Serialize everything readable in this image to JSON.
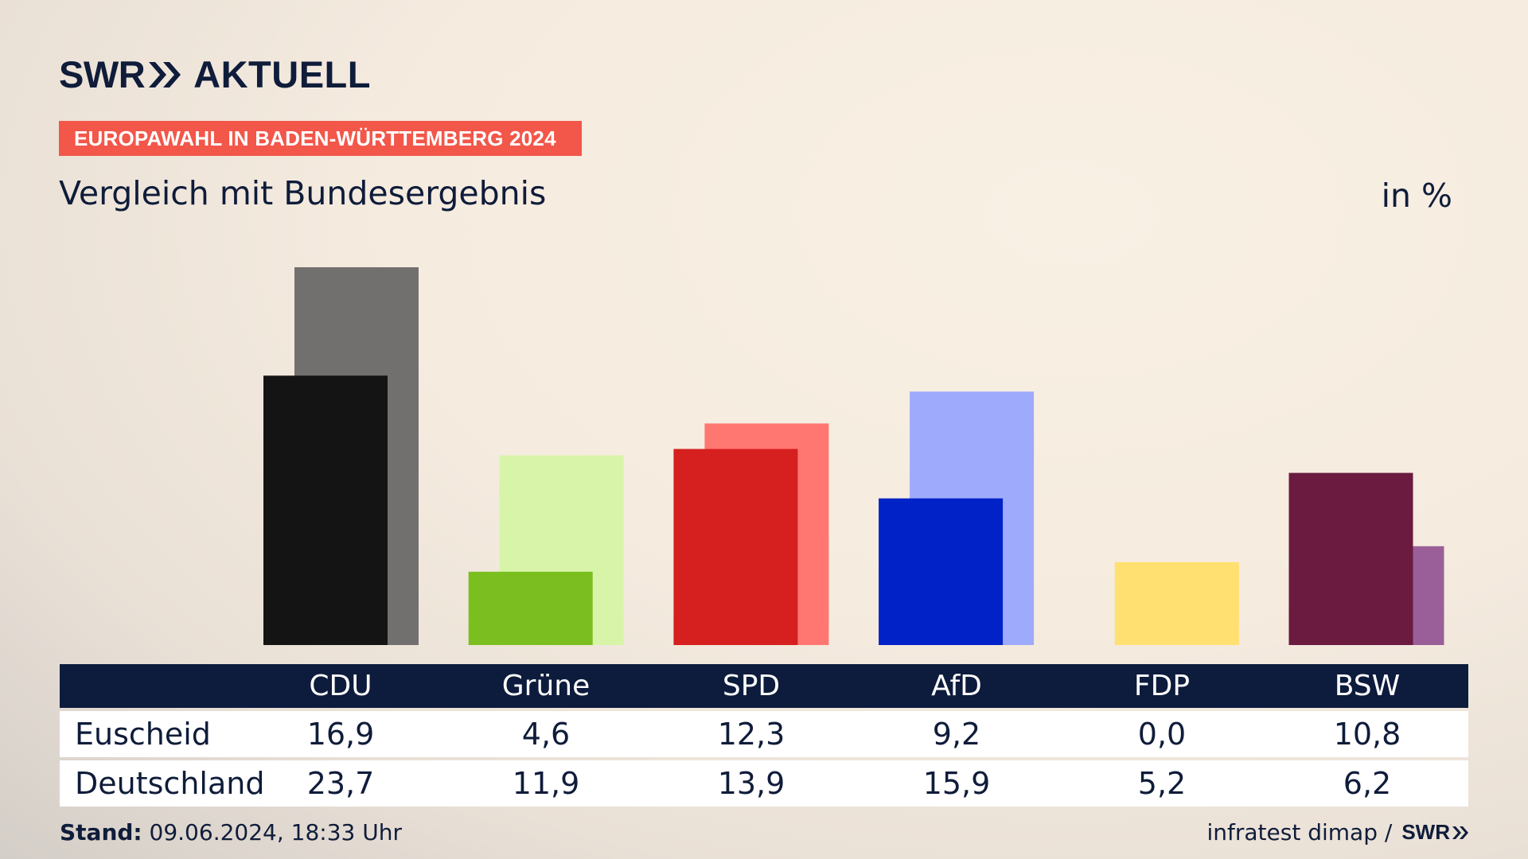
{
  "header": {
    "logo_swr": "SWR",
    "logo_aktuell": "AKTUELL",
    "badge": "EUROPAWAHL IN BADEN-WÜRTTEMBERG 2024",
    "subtitle": "Vergleich mit Bundesergebnis",
    "unit": "in %"
  },
  "colors": {
    "brand_navy": "#0f1c3a",
    "badge_red": "#f2574a",
    "table_header": "#0d1b3c"
  },
  "chart_data": {
    "type": "bar",
    "title": "Vergleich mit Bundesergebnis",
    "unit": "in %",
    "categories": [
      "CDU",
      "Grüne",
      "SPD",
      "AfD",
      "FDP",
      "BSW"
    ],
    "series": [
      {
        "name": "Euscheid",
        "values": [
          16.9,
          4.6,
          12.3,
          9.2,
          0.0,
          10.8
        ],
        "colors": [
          "#141414",
          "#7abf1f",
          "#d61f1f",
          "#0022c7",
          "#ffe070",
          "#6b1a40"
        ]
      },
      {
        "name": "Deutschland",
        "values": [
          23.7,
          11.9,
          13.9,
          15.9,
          5.2,
          6.2
        ],
        "colors": [
          "#72706e",
          "#d8f4a8",
          "#ff7770",
          "#9eaafc",
          "#ffe070",
          "#9a5f98"
        ]
      }
    ],
    "ylim": [
      0,
      23.7
    ],
    "grid": false,
    "legend": "table"
  },
  "table": {
    "headers": [
      "CDU",
      "Grüne",
      "SPD",
      "AfD",
      "FDP",
      "BSW"
    ],
    "rows": [
      {
        "label": "Euscheid",
        "values": [
          "16,9",
          "4,6",
          "12,3",
          "9,2",
          "0,0",
          "10,8"
        ]
      },
      {
        "label": "Deutschland",
        "values": [
          "23,7",
          "11,9",
          "13,9",
          "15,9",
          "5,2",
          "6,2"
        ]
      }
    ]
  },
  "footer": {
    "stand_label": "Stand:",
    "stand_value": "09.06.2024, 18:33 Uhr",
    "source": "infratest dimap /",
    "source_logo": "SWR"
  }
}
